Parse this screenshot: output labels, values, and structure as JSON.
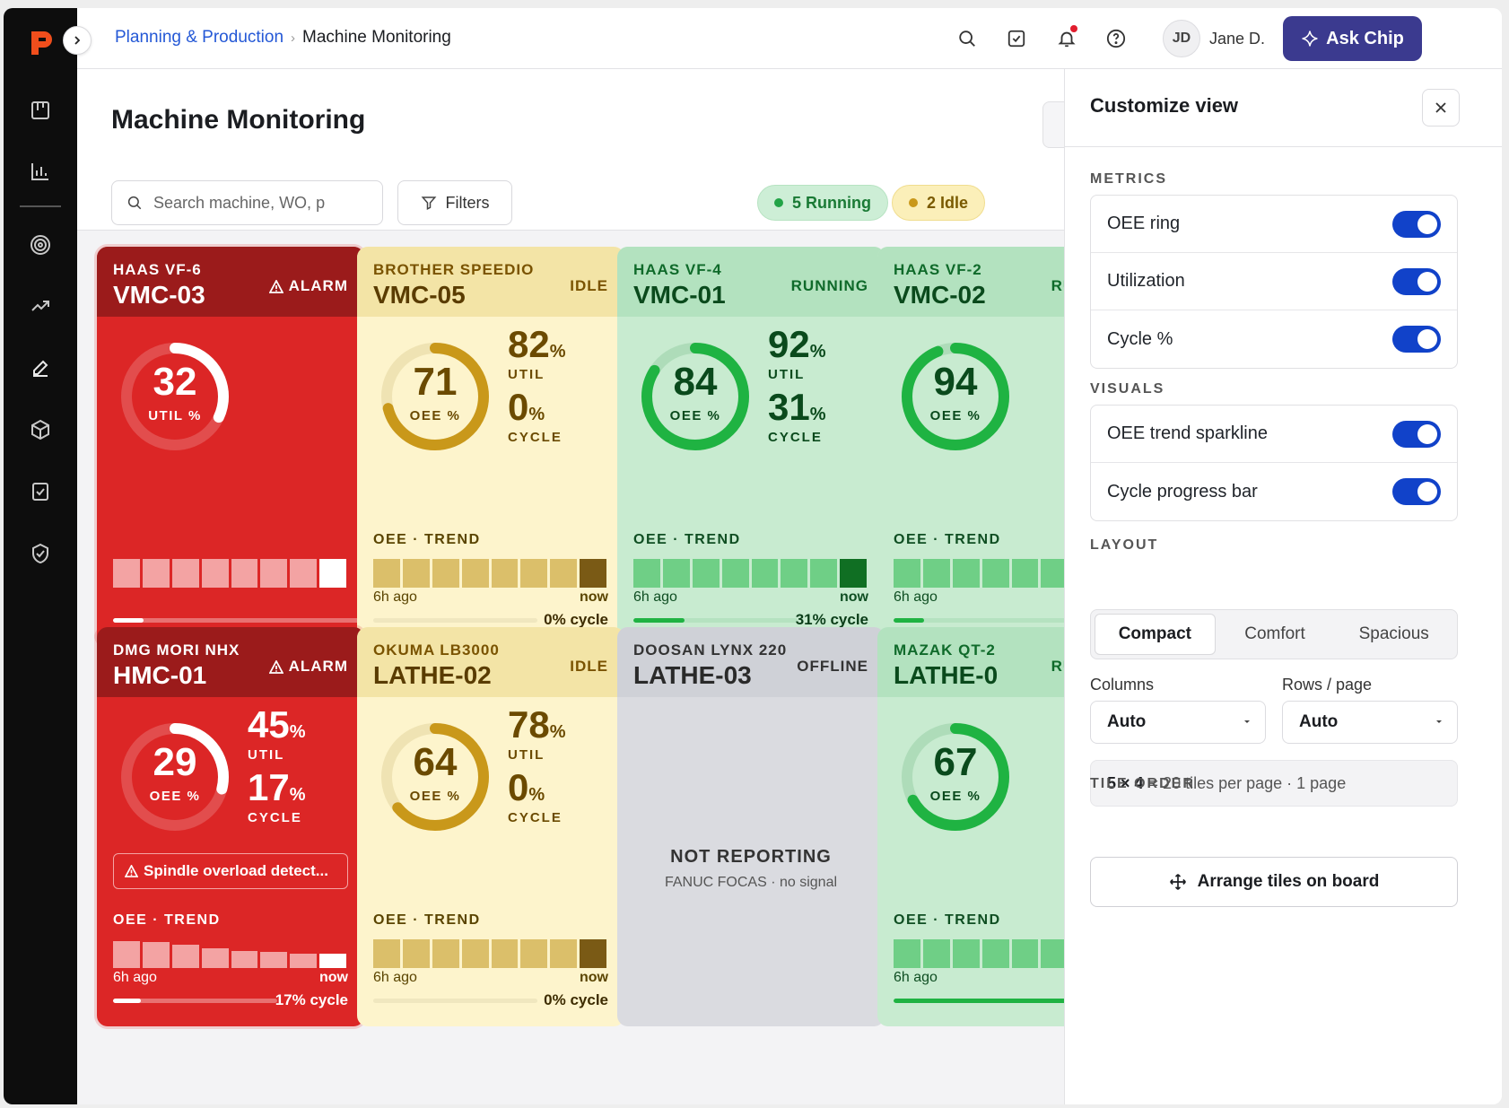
{
  "app": {
    "logo": "P"
  },
  "breadcrumb": {
    "parent": "Planning & Production",
    "current": "Machine Monitoring"
  },
  "user": {
    "initials": "JD",
    "name": "Jane D."
  },
  "ask_button": "Ask Chip",
  "page": {
    "title": "Machine Monitoring",
    "search_placeholder": "Search machine, WO, p",
    "filters_label": "Filters",
    "running_pill": "5 Running",
    "idle_pill": "2 Idle"
  },
  "tiles": [
    {
      "model": "HAAS VF-6",
      "id": "VMC-03",
      "status": "ALARM",
      "ring_value": "32",
      "ring_label": "UTIL %",
      "ring_fraction": 0.32
    },
    {
      "model": "BROTHER SPEEDIO",
      "id": "VMC-05",
      "status": "IDLE",
      "ring_value": "71",
      "ring_label": "OEE %",
      "ring_fraction": 0.71,
      "util": "82",
      "cycle": "0",
      "util_label": "UTIL",
      "cycle_label": "CYCLE",
      "trend_label": "OEE · TREND",
      "ago": "6h ago",
      "now": "now",
      "cycle_text": "0% cycle",
      "cycle_fraction": 0.0
    },
    {
      "model": "HAAS VF-4",
      "id": "VMC-01",
      "status": "RUNNING",
      "ring_value": "84",
      "ring_label": "OEE %",
      "ring_fraction": 0.84,
      "util": "92",
      "cycle": "31",
      "util_label": "UTIL",
      "cycle_label": "CYCLE",
      "trend_label": "OEE · TREND",
      "ago": "6h ago",
      "now": "now",
      "cycle_text": "31% cycle",
      "cycle_fraction": 0.31
    },
    {
      "model": "HAAS VF-2",
      "id": "VMC-02",
      "status": "RUNNING",
      "ring_value": "94",
      "ring_label": "OEE %",
      "ring_fraction": 0.94,
      "trend_label": "OEE · TREND",
      "ago": "6h ago"
    },
    {
      "model": "DMG MORI NHX",
      "id": "HMC-01",
      "status": "ALARM",
      "ring_value": "29",
      "ring_label": "OEE %",
      "ring_fraction": 0.29,
      "util": "45",
      "cycle": "17",
      "util_label": "UTIL",
      "cycle_label": "CYCLE",
      "alert": "Spindle overload detect...",
      "trend_label": "OEE · TREND",
      "ago": "6h ago",
      "now": "now",
      "cycle_text": "17% cycle",
      "cycle_fraction": 0.17
    },
    {
      "model": "OKUMA LB3000",
      "id": "LATHE-02",
      "status": "IDLE",
      "ring_value": "64",
      "ring_label": "OEE %",
      "ring_fraction": 0.64,
      "util": "78",
      "cycle": "0",
      "util_label": "UTIL",
      "cycle_label": "CYCLE",
      "trend_label": "OEE · TREND",
      "ago": "6h ago",
      "now": "now",
      "cycle_text": "0% cycle",
      "cycle_fraction": 0.0
    },
    {
      "model": "DOOSAN LYNX 220",
      "id": "LATHE-03",
      "status": "OFFLINE",
      "not_reporting": "NOT REPORTING",
      "source": "FANUC FOCAS · no signal"
    },
    {
      "model": "MAZAK QT-2",
      "id": "LATHE-0",
      "status": "RUNNING",
      "ring_value": "67",
      "ring_label": "OEE %",
      "ring_fraction": 0.67,
      "trend_label": "OEE · TREND",
      "ago": "6h ago"
    }
  ],
  "colors": {
    "alarm": "#dc2626",
    "alarm_head": "#9b1b1b",
    "idle": "#fdf4cc",
    "idle_head": "#f3e4a6",
    "idle_ring": "#c9981a",
    "running": "#c8ebd0",
    "running_head": "#b3e2bf",
    "running_ring": "#1fb342",
    "offline": "#dadbe0",
    "offline_head": "#cfd1d7",
    "toggle_on": "#1142c9",
    "accent": "#3b3a8f"
  },
  "panel": {
    "title": "Customize view",
    "metrics_heading": "METRICS",
    "metrics": [
      {
        "label": "OEE ring",
        "on": true
      },
      {
        "label": "Utilization",
        "on": true
      },
      {
        "label": "Cycle %",
        "on": true
      }
    ],
    "visuals_heading": "VISUALS",
    "visuals": [
      {
        "label": "OEE trend sparkline",
        "on": true
      },
      {
        "label": "Cycle progress bar",
        "on": true
      }
    ],
    "layout_heading": "LAYOUT",
    "layout_options": [
      "Compact",
      "Comfort",
      "Spacious"
    ],
    "layout_selected": "Compact",
    "columns_label": "Columns",
    "columns_value": "Auto",
    "rows_label": "Rows / page",
    "rows_value": "Auto",
    "info_dims": "5 × 4",
    "info_rest": "= 20 tiles per page · 1 page",
    "tile_order_heading": "TILE ORDER",
    "arrange_label": "Arrange tiles on board"
  },
  "icons": [
    "logo-icon",
    "expand-icon",
    "board-icon",
    "chart-icon",
    "target-icon",
    "trend-icon",
    "pen-icon",
    "cube-icon",
    "checklist-icon",
    "shield-icon",
    "search-icon",
    "task-icon",
    "bell-icon",
    "help-icon",
    "sparkle-icon",
    "filter-icon",
    "warning-icon",
    "close-icon",
    "chevron-down-icon",
    "move-icon"
  ]
}
